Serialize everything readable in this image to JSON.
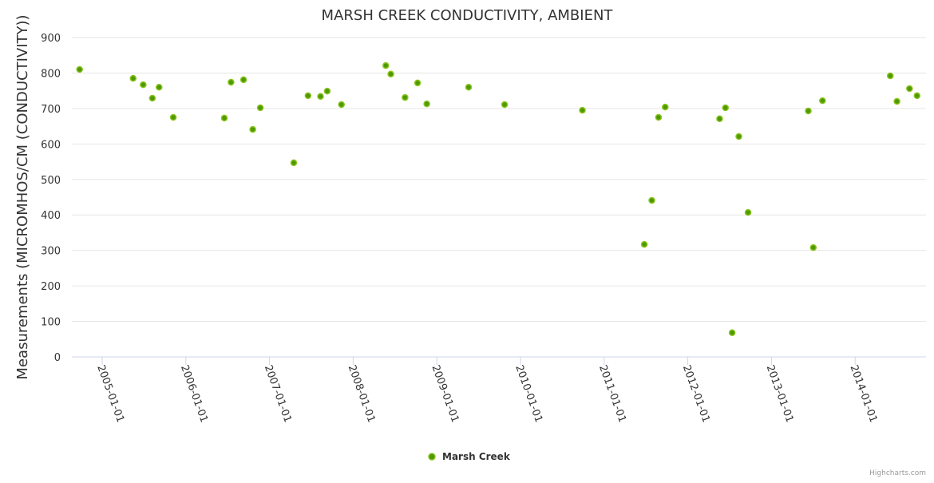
{
  "chart_data": {
    "type": "scatter",
    "title": "MARSH CREEK CONDUCTIVITY, AMBIENT",
    "ylabel": "Measurements (MICROMHOS/CM (CONDUCTIVITY))",
    "xlabel": "",
    "ylim": [
      0,
      900
    ],
    "yticks": [
      0,
      100,
      200,
      300,
      400,
      500,
      600,
      700,
      800,
      900
    ],
    "xlim": [
      2004.6,
      2014.95
    ],
    "xticks": [
      {
        "value": 2005,
        "label": "2005-01-01"
      },
      {
        "value": 2006,
        "label": "2006-01-01"
      },
      {
        "value": 2007,
        "label": "2007-01-01"
      },
      {
        "value": 2008,
        "label": "2008-01-01"
      },
      {
        "value": 2009,
        "label": "2009-01-01"
      },
      {
        "value": 2010,
        "label": "2010-01-01"
      },
      {
        "value": 2011,
        "label": "2011-01-01"
      },
      {
        "value": 2012,
        "label": "2012-01-01"
      },
      {
        "value": 2013,
        "label": "2013-01-01"
      },
      {
        "value": 2014,
        "label": "2014-01-01"
      }
    ],
    "grid": true,
    "legend_position": "bottom-center",
    "series": [
      {
        "name": "Marsh Creek",
        "color": "#4d9a00",
        "outline": "#8cc320",
        "x_units": "decimal year",
        "points": [
          [
            2004.73,
            810
          ],
          [
            2005.37,
            785
          ],
          [
            2005.49,
            767
          ],
          [
            2005.6,
            729
          ],
          [
            2005.68,
            760
          ],
          [
            2005.85,
            675
          ],
          [
            2006.46,
            673
          ],
          [
            2006.54,
            774
          ],
          [
            2006.69,
            781
          ],
          [
            2006.8,
            641
          ],
          [
            2006.89,
            702
          ],
          [
            2007.29,
            547
          ],
          [
            2007.46,
            736
          ],
          [
            2007.61,
            734
          ],
          [
            2007.69,
            749
          ],
          [
            2007.86,
            711
          ],
          [
            2008.39,
            821
          ],
          [
            2008.45,
            797
          ],
          [
            2008.62,
            731
          ],
          [
            2008.77,
            772
          ],
          [
            2008.88,
            713
          ],
          [
            2009.38,
            760
          ],
          [
            2009.81,
            711
          ],
          [
            2010.74,
            695
          ],
          [
            2011.48,
            317
          ],
          [
            2011.57,
            441
          ],
          [
            2011.65,
            675
          ],
          [
            2011.73,
            704
          ],
          [
            2012.38,
            671
          ],
          [
            2012.45,
            702
          ],
          [
            2012.53,
            68
          ],
          [
            2012.61,
            621
          ],
          [
            2012.72,
            407
          ],
          [
            2013.44,
            693
          ],
          [
            2013.5,
            308
          ],
          [
            2013.61,
            722
          ],
          [
            2014.42,
            792
          ],
          [
            2014.5,
            720
          ],
          [
            2014.65,
            756
          ],
          [
            2014.74,
            736
          ]
        ]
      }
    ]
  },
  "credits": "Highcharts.com"
}
